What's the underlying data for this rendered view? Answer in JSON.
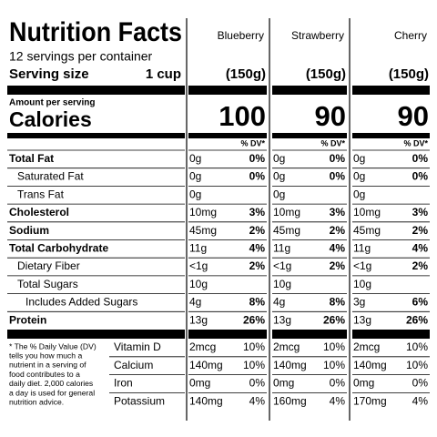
{
  "header": {
    "title": "Nutrition Facts",
    "servings": "12 servings per container",
    "serving_size_label": "Serving size",
    "serving_size": "1 cup",
    "amount_per_serving": "Amount per serving",
    "calories_label": "Calories",
    "dv_header": "% DV*"
  },
  "products": [
    {
      "name": "Blueberry",
      "serving_weight": "(150g)",
      "calories": 100
    },
    {
      "name": "Strawberry",
      "serving_weight": "(150g)",
      "calories": 90
    },
    {
      "name": "Cherry",
      "serving_weight": "(150g)",
      "calories": 90
    }
  ],
  "nutrients": [
    {
      "name": "Total Fat",
      "bold": true,
      "indent": 0,
      "cells": [
        [
          "0g",
          "0%"
        ],
        [
          "0g",
          "0%"
        ],
        [
          "0g",
          "0%"
        ]
      ]
    },
    {
      "name": "Saturated Fat",
      "bold": false,
      "indent": 1,
      "cells": [
        [
          "0g",
          "0%"
        ],
        [
          "0g",
          "0%"
        ],
        [
          "0g",
          "0%"
        ]
      ]
    },
    {
      "name": "Trans Fat",
      "bold": false,
      "indent": 1,
      "cells": [
        [
          "0g"
        ],
        [
          "0g"
        ],
        [
          "0g"
        ]
      ]
    },
    {
      "name": "Cholesterol",
      "bold": true,
      "indent": 0,
      "cells": [
        [
          "10mg",
          "3%"
        ],
        [
          "10mg",
          "3%"
        ],
        [
          "10mg",
          "3%"
        ]
      ]
    },
    {
      "name": "Sodium",
      "bold": true,
      "indent": 0,
      "cells": [
        [
          "45mg",
          "2%"
        ],
        [
          "45mg",
          "2%"
        ],
        [
          "45mg",
          "2%"
        ]
      ]
    },
    {
      "name": "Total Carbohydrate",
      "bold": true,
      "indent": 0,
      "cells": [
        [
          "11g",
          "4%"
        ],
        [
          "11g",
          "4%"
        ],
        [
          "11g",
          "4%"
        ]
      ]
    },
    {
      "name": "Dietary Fiber",
      "bold": false,
      "indent": 1,
      "cells": [
        [
          "<1g",
          "2%"
        ],
        [
          "<1g",
          "2%"
        ],
        [
          "<1g",
          "2%"
        ]
      ]
    },
    {
      "name": "Total Sugars",
      "bold": false,
      "indent": 1,
      "cells": [
        [
          "10g"
        ],
        [
          "10g"
        ],
        [
          "10g"
        ]
      ]
    },
    {
      "name": "Includes Added Sugars",
      "bold": false,
      "indent": 2,
      "cells": [
        [
          "4g",
          "8%"
        ],
        [
          "4g",
          "8%"
        ],
        [
          "3g",
          "6%"
        ]
      ]
    },
    {
      "name": "Protein",
      "bold": true,
      "indent": 0,
      "cells": [
        [
          "13g",
          "26%"
        ],
        [
          "13g",
          "26%"
        ],
        [
          "13g",
          "26%"
        ]
      ]
    }
  ],
  "vitamins": [
    {
      "name": "Vitamin D",
      "cells": [
        [
          "2mcg",
          "10%"
        ],
        [
          "2mcg",
          "10%"
        ],
        [
          "2mcg",
          "10%"
        ]
      ]
    },
    {
      "name": "Calcium",
      "cells": [
        [
          "140mg",
          "10%"
        ],
        [
          "140mg",
          "10%"
        ],
        [
          "140mg",
          "10%"
        ]
      ]
    },
    {
      "name": "Iron",
      "cells": [
        [
          "0mg",
          "0%"
        ],
        [
          "0mg",
          "0%"
        ],
        [
          "0mg",
          "0%"
        ]
      ]
    },
    {
      "name": "Potassium",
      "cells": [
        [
          "140mg",
          "4%"
        ],
        [
          "160mg",
          "4%"
        ],
        [
          "170mg",
          "4%"
        ]
      ]
    }
  ],
  "footnote": [
    "* The % Daily Value (DV)",
    "tells you how much a",
    "nutrient in a serving of",
    "food contributes to a",
    "daily diet. 2,000 calories",
    "a day is used for general",
    "nutrition advice."
  ]
}
